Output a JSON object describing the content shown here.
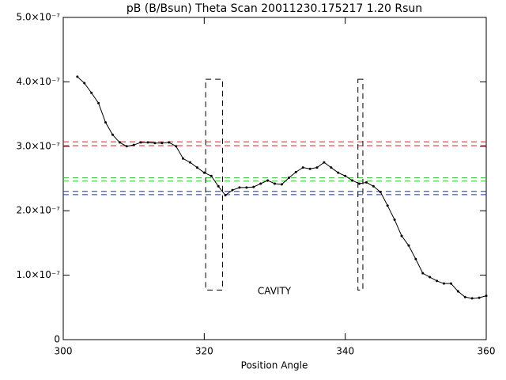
{
  "chart_data": {
    "type": "line",
    "title": "pB (B/Bsun) Theta Scan 20011230.175217 1.20 Rsun",
    "xlabel": "Position Angle",
    "x": [
      302,
      303,
      304,
      305,
      306,
      307,
      308,
      309,
      310,
      311,
      312,
      313,
      314,
      315,
      316,
      317,
      318,
      319,
      320,
      321,
      322,
      323,
      324,
      325,
      326,
      327,
      328,
      329,
      330,
      331,
      332,
      333,
      334,
      335,
      336,
      337,
      338,
      339,
      340,
      341,
      342,
      343,
      344,
      345,
      346,
      347,
      348,
      349,
      350,
      351,
      352,
      353,
      354,
      355,
      356,
      357,
      358,
      359,
      360
    ],
    "values": [
      4.08e-07,
      3.98e-07,
      3.83e-07,
      3.67e-07,
      3.37e-07,
      3.18e-07,
      3.06e-07,
      3e-07,
      3.02e-07,
      3.06e-07,
      3.06e-07,
      3.05e-07,
      3.05e-07,
      3.06e-07,
      3e-07,
      2.81e-07,
      2.75e-07,
      2.67e-07,
      2.59e-07,
      2.54e-07,
      2.38e-07,
      2.24e-07,
      2.32e-07,
      2.36e-07,
      2.36e-07,
      2.37e-07,
      2.42e-07,
      2.47e-07,
      2.42e-07,
      2.41e-07,
      2.51e-07,
      2.6e-07,
      2.67e-07,
      2.65e-07,
      2.67e-07,
      2.75e-07,
      2.67e-07,
      2.59e-07,
      2.54e-07,
      2.47e-07,
      2.42e-07,
      2.44e-07,
      2.38e-07,
      2.29e-07,
      2.08e-07,
      1.86e-07,
      1.61e-07,
      1.46e-07,
      1.25e-07,
      1.03e-07,
      9.7e-08,
      9.1e-08,
      8.7e-08,
      8.7e-08,
      7.5e-08,
      6.6e-08,
      6.4e-08,
      6.5e-08,
      6.8e-08
    ],
    "color": "#000000",
    "xlim": [
      300,
      360
    ],
    "xticks": [
      300,
      320,
      340,
      360
    ],
    "ylim": [
      0,
      5e-07
    ],
    "yticks": [
      0,
      {
        "value": 1e-07,
        "label": "1.0×10⁻⁷"
      },
      {
        "value": 2e-07,
        "label": "2.0×10⁻⁷"
      },
      {
        "value": 3e-07,
        "label": "3.0×10⁻⁷"
      },
      {
        "value": 4e-07,
        "label": "4.0×10⁻⁷"
      },
      {
        "value": 5e-07,
        "label": "5.0×10⁻⁷"
      }
    ],
    "reference_lines": [
      {
        "value": 3.07e-07,
        "color": "#e02020"
      },
      {
        "value": 3.01e-07,
        "color": "#e02020"
      },
      {
        "value": 2.51e-07,
        "color": "#30c030"
      },
      {
        "value": 2.46e-07,
        "color": "#30c030"
      },
      {
        "value": 2.3e-07,
        "color": "#2030d0"
      },
      {
        "value": 2.25e-07,
        "color": "#2030d0"
      }
    ],
    "regions": [
      {
        "x": [
          320.2,
          322.6
        ],
        "y": [
          7.7e-08,
          4.04e-07
        ]
      },
      {
        "x": [
          341.8,
          342.5
        ],
        "y": [
          7.7e-08,
          4.04e-07
        ]
      }
    ],
    "annotation": {
      "text": "CAVITY",
      "color": "#e02020"
    }
  }
}
